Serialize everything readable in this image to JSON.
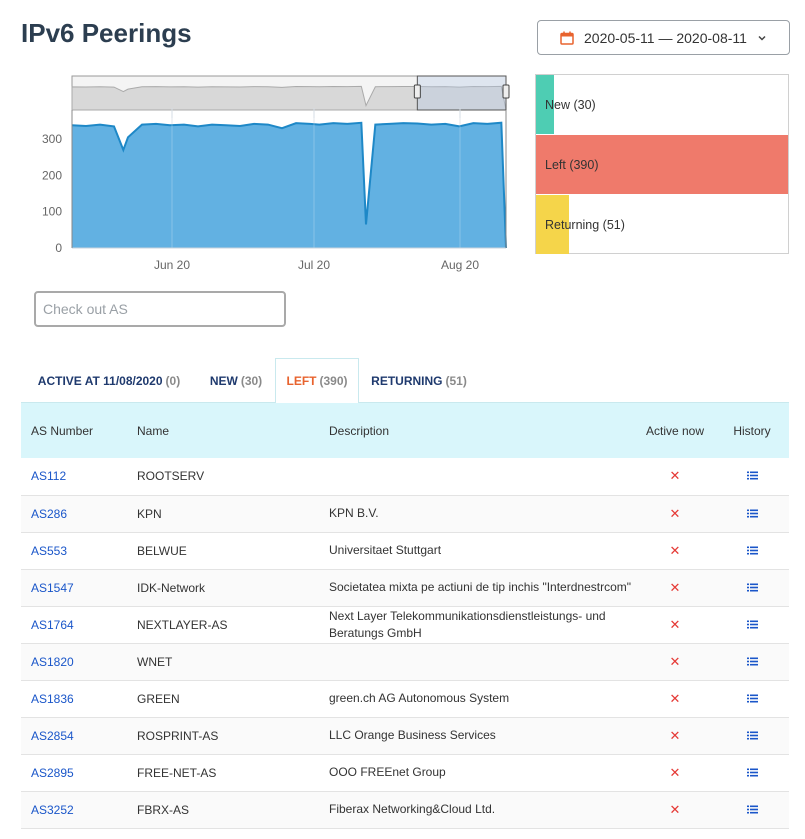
{
  "page_title": "IPv6 Peerings",
  "date_range": "2020-05-11 — 2020-08-11",
  "colors": {
    "new": "#4ecdb3",
    "left": "#ef7a6b",
    "returning": "#f5d54a",
    "area": "#5aade0",
    "area_line": "#1e88c7"
  },
  "chart_data": {
    "type": "area",
    "x_ticks": [
      "Jun 20",
      "Jul 20",
      "Aug 20"
    ],
    "y_ticks": [
      "0",
      "100",
      "200",
      "300"
    ],
    "ylim": [
      0,
      380
    ],
    "x": [
      "2020-05-11",
      "2020-05-14",
      "2020-05-17",
      "2020-05-20",
      "2020-05-22",
      "2020-05-23",
      "2020-05-26",
      "2020-05-29",
      "2020-06-01",
      "2020-06-04",
      "2020-06-07",
      "2020-06-10",
      "2020-06-13",
      "2020-06-16",
      "2020-06-19",
      "2020-06-22",
      "2020-06-25",
      "2020-06-28",
      "2020-07-01",
      "2020-07-03",
      "2020-07-06",
      "2020-07-09",
      "2020-07-12",
      "2020-07-13",
      "2020-07-15",
      "2020-07-18",
      "2020-07-21",
      "2020-07-24",
      "2020-07-27",
      "2020-07-30",
      "2020-08-02",
      "2020-08-05",
      "2020-08-08",
      "2020-08-11",
      "2020-08-12"
    ],
    "values": [
      338,
      336,
      340,
      335,
      270,
      305,
      340,
      342,
      338,
      340,
      335,
      340,
      338,
      336,
      342,
      340,
      330,
      344,
      342,
      340,
      344,
      342,
      345,
      65,
      340,
      342,
      344,
      343,
      340,
      342,
      335,
      344,
      342,
      345,
      0
    ],
    "navigator_selection": [
      "2020-07-24",
      "2020-08-12"
    ]
  },
  "legend": [
    {
      "label": "New (30)",
      "fraction": 0.07,
      "color": "#4ecdb3"
    },
    {
      "label": "Left (390)",
      "fraction": 1.0,
      "color": "#ef7a6b"
    },
    {
      "label": "Returning (51)",
      "fraction": 0.13,
      "color": "#f5d54a"
    }
  ],
  "search": {
    "placeholder": "Check out AS"
  },
  "tabs": [
    {
      "label": "ACTIVE AT 11/08/2020",
      "count": "(0)"
    },
    {
      "label": "NEW",
      "count": "(30)"
    },
    {
      "label": "LEFT",
      "count": "(390)"
    },
    {
      "label": "RETURNING",
      "count": "(51)"
    }
  ],
  "table": {
    "headers": [
      "AS Number",
      "Name",
      "Description",
      "Active now",
      "History"
    ],
    "rows": [
      {
        "as": "AS112",
        "name": "ROOTSERV",
        "desc": "",
        "active": "✕"
      },
      {
        "as": "AS286",
        "name": "KPN",
        "desc": "KPN B.V.",
        "active": "✕"
      },
      {
        "as": "AS553",
        "name": "BELWUE",
        "desc": "Universitaet Stuttgart",
        "active": "✕"
      },
      {
        "as": "AS1547",
        "name": "IDK-Network",
        "desc": "Societatea mixta pe actiuni de tip inchis \"Interdnestrcom\"",
        "active": "✕"
      },
      {
        "as": "AS1764",
        "name": "NEXTLAYER-AS",
        "desc": "Next Layer Telekommunikationsdienstleistungs- und Beratungs GmbH",
        "active": "✕"
      },
      {
        "as": "AS1820",
        "name": "WNET",
        "desc": "",
        "active": "✕"
      },
      {
        "as": "AS1836",
        "name": "GREEN",
        "desc": "green.ch AG Autonomous System",
        "active": "✕"
      },
      {
        "as": "AS2854",
        "name": "ROSPRINT-AS",
        "desc": "LLC Orange Business Services",
        "active": "✕"
      },
      {
        "as": "AS2895",
        "name": "FREE-NET-AS",
        "desc": "OOO FREEnet Group",
        "active": "✕"
      },
      {
        "as": "AS3252",
        "name": "FBRX-AS",
        "desc": "Fiberax Networking&Cloud Ltd.",
        "active": "✕"
      }
    ]
  }
}
